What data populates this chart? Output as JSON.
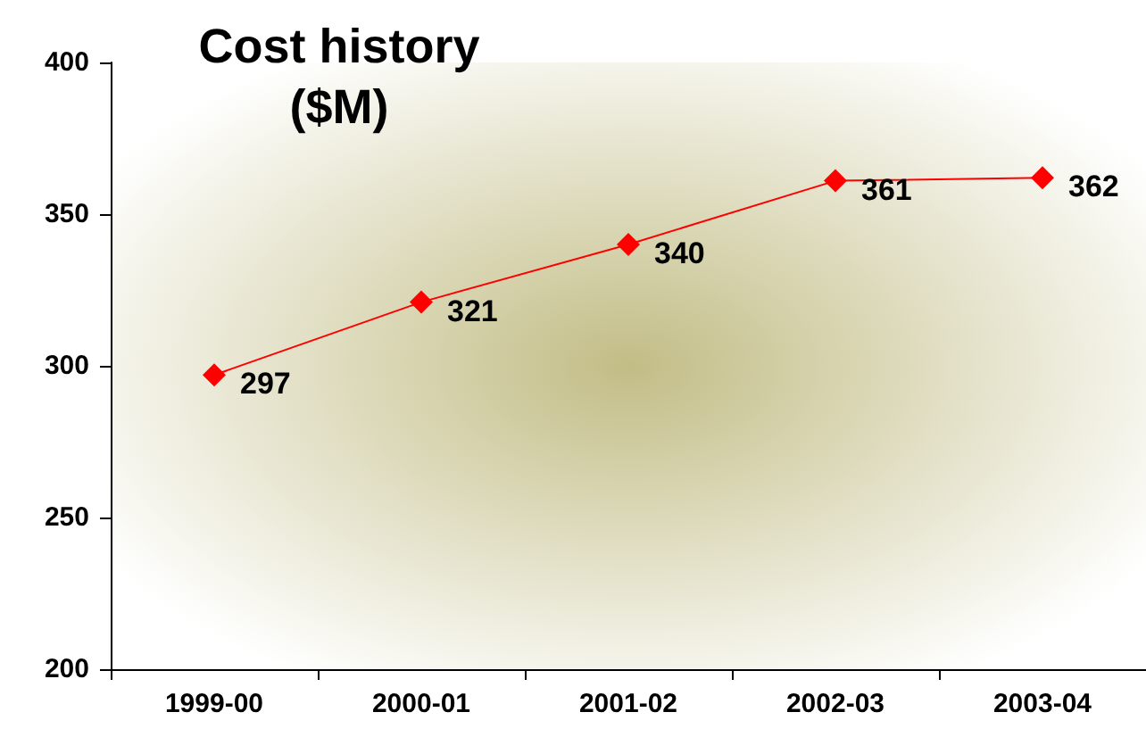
{
  "chart_data": {
    "type": "line",
    "title": "Cost history\n($M)",
    "categories": [
      "1999-00",
      "2000-01",
      "2001-02",
      "2002-03",
      "2003-04"
    ],
    "series": [
      {
        "color": "#ff0000",
        "values": [
          297,
          321,
          340,
          361,
          362
        ]
      }
    ],
    "ylim": [
      200,
      400
    ],
    "yticks": [
      200,
      250,
      300,
      350,
      400
    ],
    "grid": false,
    "marker": "diamond",
    "line_style": "solid",
    "data_labels": true
  }
}
